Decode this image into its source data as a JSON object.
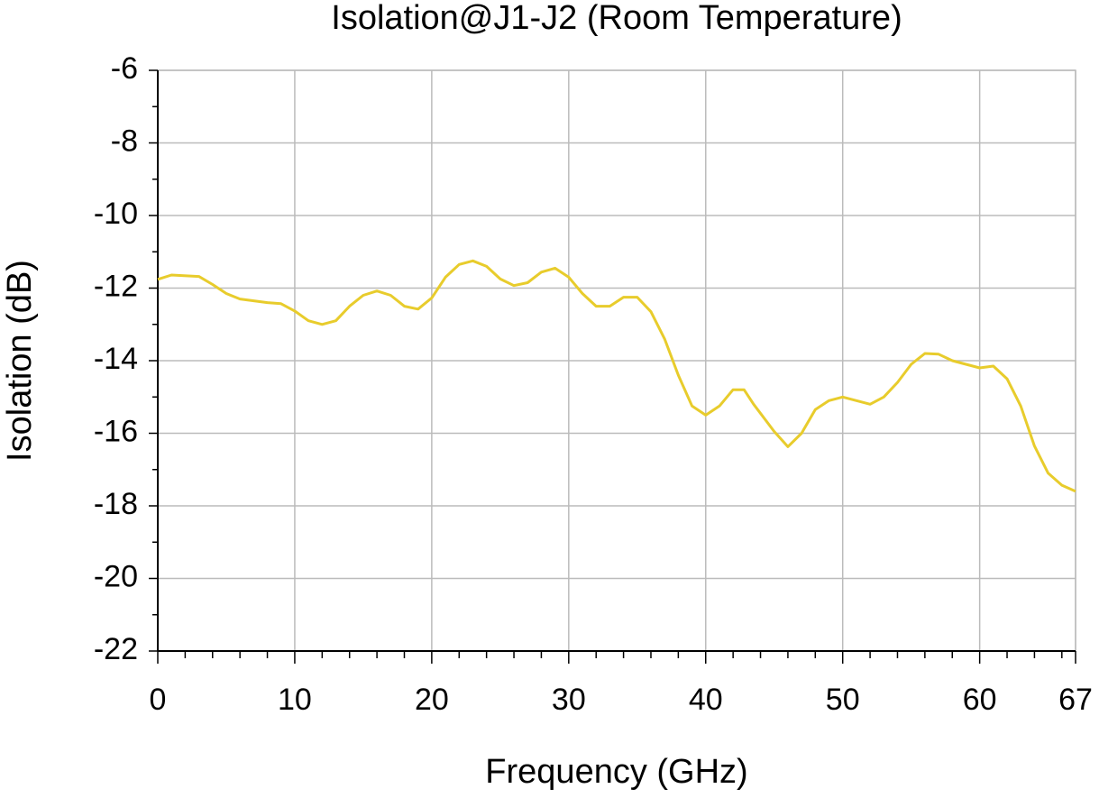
{
  "chart_data": {
    "type": "line",
    "title": "Isolation@J1-J2 (Room Temperature)",
    "xlabel": "Frequency (GHz)",
    "ylabel": "Isolation (dB)",
    "xlim": [
      0,
      67
    ],
    "ylim": [
      -22,
      -6
    ],
    "xticks": [
      0,
      10,
      20,
      30,
      40,
      50,
      60,
      67
    ],
    "yticks": [
      -6,
      -8,
      -10,
      -12,
      -14,
      -16,
      -18,
      -20,
      -22
    ],
    "xminorticks": [
      2,
      4,
      6,
      8,
      12,
      14,
      16,
      18,
      22,
      24,
      26,
      28,
      32,
      34,
      36,
      38,
      42,
      44,
      46,
      48,
      52,
      54,
      56,
      58,
      62,
      64,
      66
    ],
    "yminorticks": [
      -7,
      -9,
      -11,
      -13,
      -15,
      -17,
      -19,
      -21
    ],
    "grid": true,
    "x": [
      0,
      1,
      3,
      4,
      5,
      6,
      8,
      9,
      10,
      11,
      12,
      13,
      14,
      15,
      16,
      17,
      18,
      19,
      20,
      21,
      22,
      23,
      24,
      25,
      26,
      27,
      28,
      29,
      30,
      31,
      32,
      33,
      34,
      35,
      36,
      37,
      38,
      39,
      40,
      41,
      42,
      42.8,
      43.5,
      45,
      46,
      47,
      48,
      49,
      50,
      51,
      52,
      53,
      54,
      55,
      56,
      57,
      58,
      59,
      60,
      61,
      62,
      63,
      64,
      65,
      66,
      67
    ],
    "series": [
      {
        "name": "Isolation",
        "color": "#e8cc2c",
        "values": [
          -11.76,
          -11.64,
          -11.68,
          -11.9,
          -12.15,
          -12.3,
          -12.4,
          -12.43,
          -12.63,
          -12.9,
          -13.0,
          -12.9,
          -12.5,
          -12.2,
          -12.08,
          -12.2,
          -12.5,
          -12.58,
          -12.27,
          -11.7,
          -11.35,
          -11.25,
          -11.4,
          -11.75,
          -11.93,
          -11.85,
          -11.56,
          -11.45,
          -11.7,
          -12.15,
          -12.5,
          -12.5,
          -12.25,
          -12.25,
          -12.65,
          -13.4,
          -14.4,
          -15.25,
          -15.5,
          -15.25,
          -14.8,
          -14.8,
          -15.2,
          -15.95,
          -16.37,
          -16.0,
          -15.35,
          -15.1,
          -15.0,
          -15.1,
          -15.2,
          -15.0,
          -14.6,
          -14.1,
          -13.8,
          -13.82,
          -14.0,
          -14.1,
          -14.2,
          -14.15,
          -14.5,
          -15.25,
          -16.35,
          -17.1,
          -17.43,
          -17.6
        ]
      }
    ]
  }
}
